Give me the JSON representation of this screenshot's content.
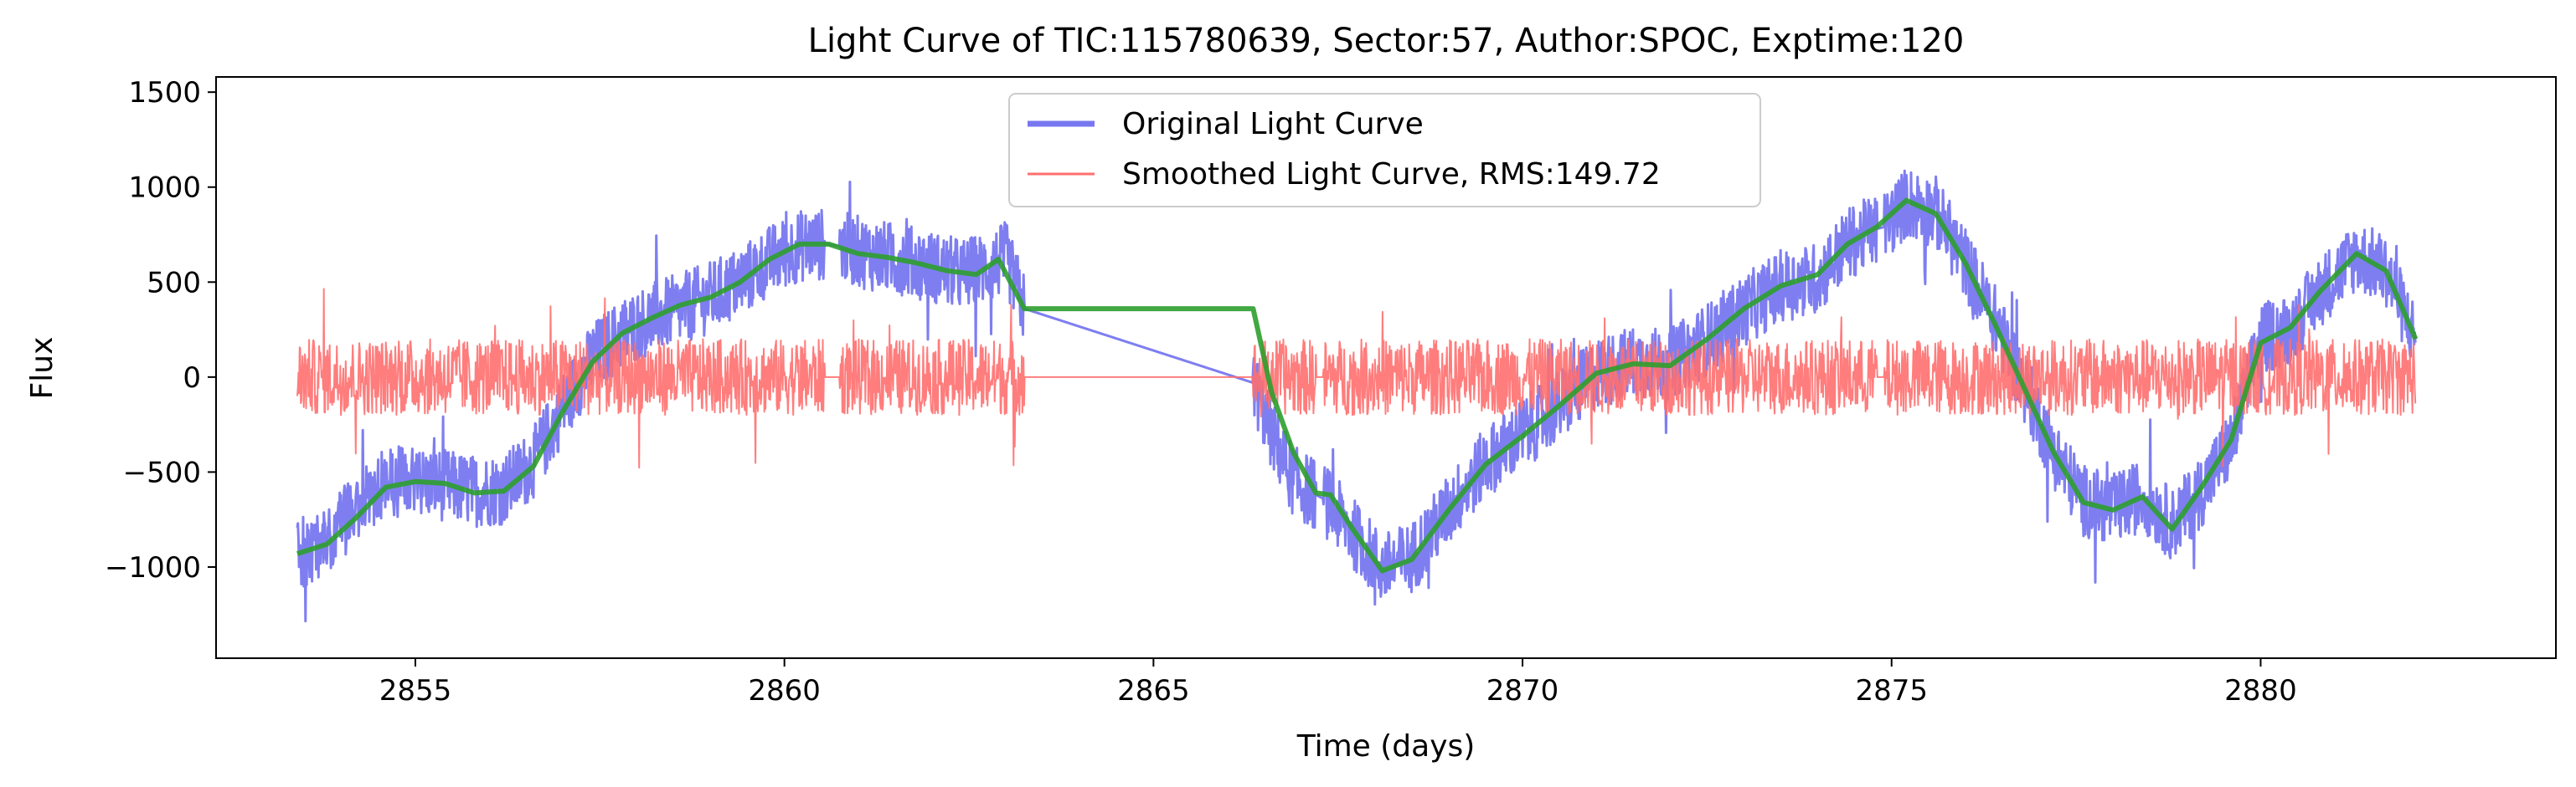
{
  "chart_data": {
    "type": "line",
    "title": "Light Curve of TIC:115780639, Sector:57, Author:SPOC, Exptime:120",
    "xlabel": "Time (days)",
    "ylabel": "Flux",
    "xlim": [
      2852.3,
      2884.0
    ],
    "ylim": [
      -1480,
      1580
    ],
    "x_ticks": [
      2855,
      2860,
      2865,
      2870,
      2875,
      2880
    ],
    "y_ticks": [
      -1000,
      -500,
      0,
      500,
      1000,
      1500
    ],
    "y_tick_labels": [
      "−1000",
      "−500",
      "0",
      "500",
      "1000",
      "1500"
    ],
    "grid": false,
    "legend_position": "top-center",
    "gaps": [
      [
        2860.55,
        2860.75
      ],
      [
        2863.25,
        2866.35
      ],
      [
        2867.2,
        2867.3
      ],
      [
        2874.8,
        2874.9
      ]
    ],
    "series": [
      {
        "name": "Original Light Curve",
        "color": "#7777f0",
        "noise": 190,
        "values": [
          [
            2853.4,
            -930
          ],
          [
            2853.8,
            -850
          ],
          [
            2854.2,
            -700
          ],
          [
            2854.6,
            -560
          ],
          [
            2855.0,
            -550
          ],
          [
            2855.4,
            -570
          ],
          [
            2855.8,
            -600
          ],
          [
            2856.2,
            -590
          ],
          [
            2856.6,
            -450
          ],
          [
            2857.0,
            -160
          ],
          [
            2857.4,
            100
          ],
          [
            2857.8,
            230
          ],
          [
            2858.2,
            310
          ],
          [
            2858.6,
            360
          ],
          [
            2859.0,
            420
          ],
          [
            2859.4,
            500
          ],
          [
            2859.8,
            610
          ],
          [
            2860.2,
            690
          ],
          [
            2860.55,
            700
          ],
          [
            2860.75,
            690
          ],
          [
            2861.2,
            640
          ],
          [
            2861.6,
            620
          ],
          [
            2862.0,
            580
          ],
          [
            2862.4,
            540
          ],
          [
            2862.8,
            580
          ],
          [
            2863.0,
            630
          ],
          [
            2863.25,
            360
          ],
          [
            2866.35,
            -30
          ],
          [
            2866.6,
            -300
          ],
          [
            2866.9,
            -550
          ],
          [
            2867.2,
            -620
          ],
          [
            2867.3,
            -640
          ],
          [
            2867.7,
            -820
          ],
          [
            2868.1,
            -1010
          ],
          [
            2868.5,
            -950
          ],
          [
            2869.0,
            -700
          ],
          [
            2869.5,
            -450
          ],
          [
            2870.0,
            -300
          ],
          [
            2870.5,
            -150
          ],
          [
            2871.0,
            20
          ],
          [
            2871.5,
            80
          ],
          [
            2872.0,
            70
          ],
          [
            2872.5,
            200
          ],
          [
            2873.0,
            350
          ],
          [
            2873.5,
            480
          ],
          [
            2874.0,
            520
          ],
          [
            2874.4,
            700
          ],
          [
            2874.8,
            780
          ],
          [
            2874.9,
            790
          ],
          [
            2875.2,
            920
          ],
          [
            2875.6,
            870
          ],
          [
            2876.0,
            600
          ],
          [
            2876.4,
            300
          ],
          [
            2876.8,
            -50
          ],
          [
            2877.2,
            -400
          ],
          [
            2877.6,
            -650
          ],
          [
            2878.0,
            -700
          ],
          [
            2878.4,
            -620
          ],
          [
            2878.8,
            -780
          ],
          [
            2879.2,
            -600
          ],
          [
            2879.6,
            -350
          ],
          [
            2880.0,
            200
          ],
          [
            2880.4,
            250
          ],
          [
            2880.8,
            450
          ],
          [
            2881.3,
            640
          ],
          [
            2881.7,
            560
          ],
          [
            2882.1,
            200
          ]
        ]
      },
      {
        "name": "Smoothed Light Curve, RMS:149.72",
        "color": "#ff6f6f",
        "noise": 200,
        "values": [
          [
            2853.4,
            0
          ],
          [
            2860.55,
            0
          ],
          [
            2860.75,
            0
          ],
          [
            2863.25,
            0
          ],
          [
            2866.35,
            0
          ],
          [
            2867.2,
            0
          ],
          [
            2867.3,
            0
          ],
          [
            2874.8,
            0
          ],
          [
            2874.9,
            0
          ],
          [
            2882.1,
            0
          ]
        ]
      },
      {
        "color": "#2e9e2e",
        "values": [
          [
            2853.4,
            -930
          ],
          [
            2853.8,
            -880
          ],
          [
            2854.2,
            -740
          ],
          [
            2854.6,
            -580
          ],
          [
            2855.0,
            -550
          ],
          [
            2855.4,
            -560
          ],
          [
            2855.8,
            -610
          ],
          [
            2856.2,
            -600
          ],
          [
            2856.6,
            -470
          ],
          [
            2857.0,
            -180
          ],
          [
            2857.4,
            80
          ],
          [
            2857.8,
            230
          ],
          [
            2858.2,
            310
          ],
          [
            2858.6,
            380
          ],
          [
            2859.0,
            420
          ],
          [
            2859.4,
            500
          ],
          [
            2859.8,
            620
          ],
          [
            2860.2,
            700
          ],
          [
            2860.6,
            700
          ],
          [
            2861.0,
            650
          ],
          [
            2861.4,
            630
          ],
          [
            2861.8,
            600
          ],
          [
            2862.2,
            560
          ],
          [
            2862.6,
            540
          ],
          [
            2862.9,
            620
          ],
          [
            2863.25,
            360
          ],
          [
            2866.35,
            360
          ],
          [
            2866.6,
            -80
          ],
          [
            2866.9,
            -400
          ],
          [
            2867.2,
            -610
          ],
          [
            2867.4,
            -620
          ],
          [
            2867.7,
            -800
          ],
          [
            2868.1,
            -1020
          ],
          [
            2868.5,
            -960
          ],
          [
            2869.0,
            -700
          ],
          [
            2869.5,
            -460
          ],
          [
            2870.0,
            -310
          ],
          [
            2870.5,
            -150
          ],
          [
            2871.0,
            20
          ],
          [
            2871.5,
            70
          ],
          [
            2872.0,
            60
          ],
          [
            2872.5,
            200
          ],
          [
            2873.0,
            360
          ],
          [
            2873.5,
            480
          ],
          [
            2874.0,
            540
          ],
          [
            2874.4,
            700
          ],
          [
            2874.8,
            790
          ],
          [
            2875.2,
            930
          ],
          [
            2875.6,
            860
          ],
          [
            2876.0,
            600
          ],
          [
            2876.4,
            280
          ],
          [
            2876.8,
            -60
          ],
          [
            2877.2,
            -400
          ],
          [
            2877.6,
            -660
          ],
          [
            2878.0,
            -700
          ],
          [
            2878.4,
            -630
          ],
          [
            2878.8,
            -800
          ],
          [
            2879.2,
            -580
          ],
          [
            2879.6,
            -330
          ],
          [
            2880.0,
            180
          ],
          [
            2880.4,
            260
          ],
          [
            2880.8,
            450
          ],
          [
            2881.3,
            650
          ],
          [
            2881.7,
            560
          ],
          [
            2882.1,
            200
          ]
        ]
      }
    ]
  }
}
